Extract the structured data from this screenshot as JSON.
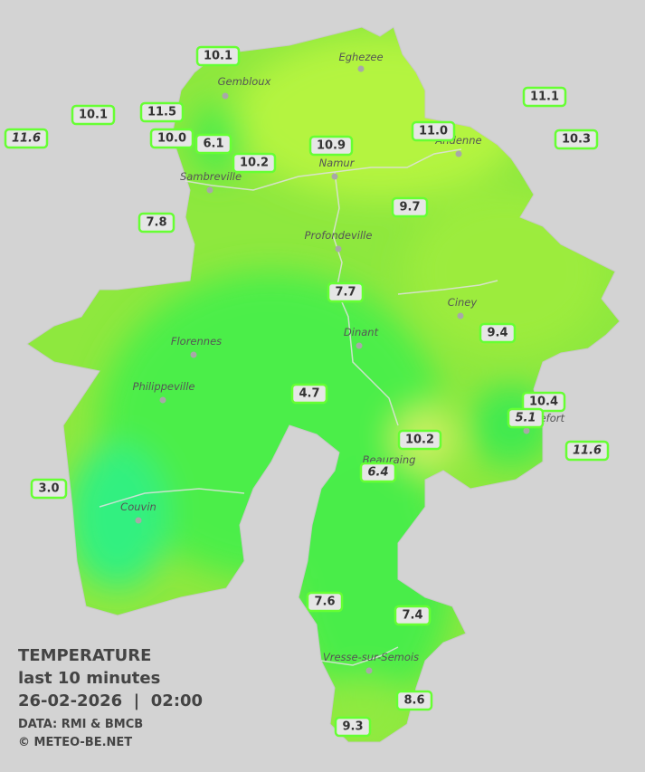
{
  "title": {
    "heading": "TEMPERATURE",
    "subheading": "last 10 minutes",
    "datetime": "26-02-2026  |  02:00",
    "source": "DATA: RMI & BMCB",
    "credit": "© METEO-BE.NET"
  },
  "cities": [
    "Eghezee",
    "Gembloux",
    "Andenne",
    "Namur",
    "Sambreville",
    "Profondeville",
    "Ciney",
    "Dinant",
    "Florennes",
    "Philippeville",
    "Rochefort",
    "Beauraing",
    "Couvin",
    "Vresse-sur-Semois"
  ],
  "stations": [
    "10.1",
    "11.1",
    "10.1",
    "11.5",
    "11.6",
    "10.0",
    "6.1",
    "10.9",
    "11.0",
    "10.3",
    "10.2",
    "9.7",
    "7.8",
    "7.7",
    "9.4",
    "4.7",
    "10.4",
    "5.1",
    "10.2",
    "11.6",
    "6.4",
    "3.0",
    "7.6",
    "7.4",
    "8.6",
    "9.3"
  ]
}
